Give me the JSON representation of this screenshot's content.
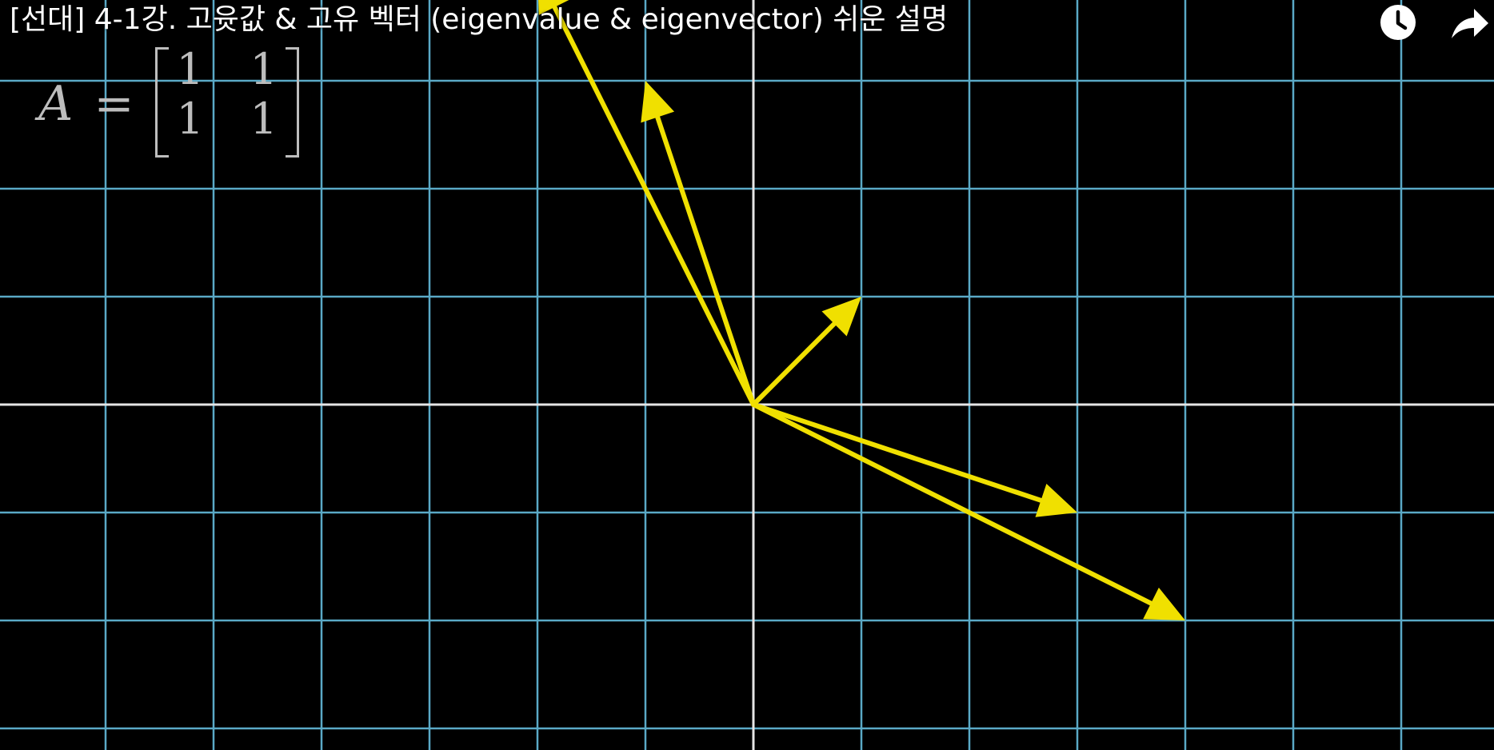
{
  "video": {
    "title": "[선대] 4-1강. 고윳값 & 고유 벡터 (eigenvalue & eigenvector) 쉬운 설명"
  },
  "controls": {
    "watch_later_icon": "clock-icon",
    "share_icon": "share-arrow-icon"
  },
  "matrix": {
    "variable": "A",
    "equals": "=",
    "entries": [
      [
        "1",
        "1"
      ],
      [
        "1",
        "1"
      ]
    ]
  },
  "colors": {
    "background": "#000000",
    "grid": "#5aa9c6",
    "axes": "#e6e6e6",
    "vector": "#f0e000",
    "text": "#ffffff",
    "matrix_text": "#bdbdbd"
  },
  "vectors": [
    {
      "name": "vector-a",
      "x": 1,
      "y": 1
    },
    {
      "name": "vector-b",
      "x": -1,
      "y": 3
    },
    {
      "name": "vector-c",
      "x": 3,
      "y": -1
    },
    {
      "name": "vector-d",
      "x": -2,
      "y": 4
    },
    {
      "name": "vector-e",
      "x": 4,
      "y": -2
    }
  ]
}
